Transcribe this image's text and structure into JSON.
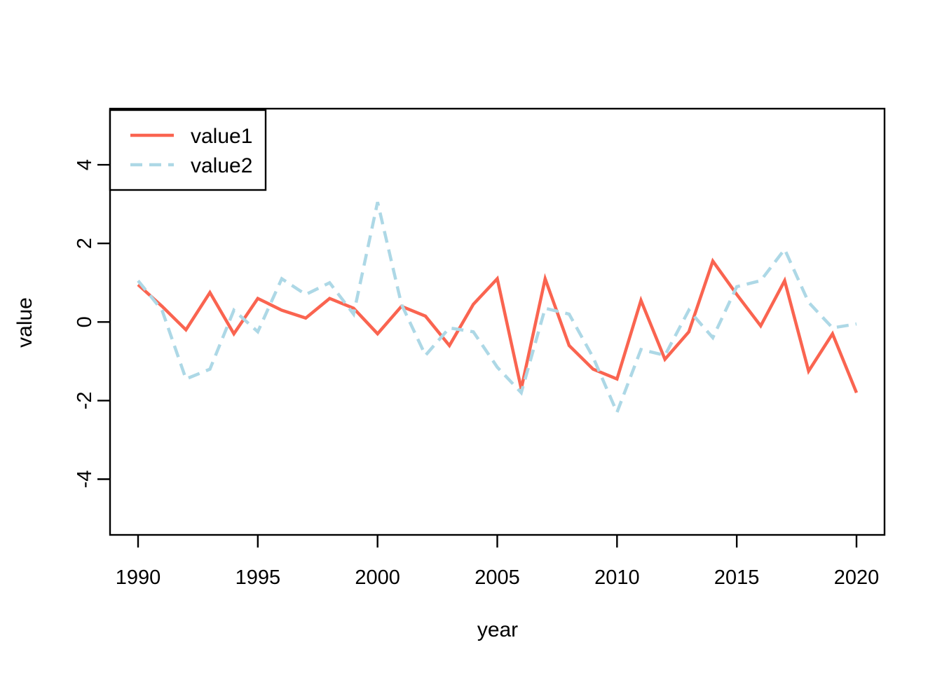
{
  "figure": {
    "background": "#ffffff",
    "border_color": "#000000"
  },
  "chart_data": {
    "type": "line",
    "title": "",
    "xlabel": "year",
    "ylabel": "value",
    "x": [
      1990,
      1991,
      1992,
      1993,
      1994,
      1995,
      1996,
      1997,
      1998,
      1999,
      2000,
      2001,
      2002,
      2003,
      2004,
      2005,
      2006,
      2007,
      2008,
      2009,
      2010,
      2011,
      2012,
      2013,
      2014,
      2015,
      2016,
      2017,
      2018,
      2019,
      2020
    ],
    "series": [
      {
        "name": "value1",
        "color": "#fa6450",
        "line_style": "solid",
        "values": [
          0.95,
          0.4,
          -0.2,
          0.75,
          -0.3,
          0.6,
          0.3,
          0.1,
          0.6,
          0.35,
          -0.3,
          0.4,
          0.15,
          -0.6,
          0.45,
          1.1,
          -1.7,
          1.1,
          -0.6,
          -1.2,
          -1.45,
          0.55,
          -0.95,
          -0.25,
          1.55,
          0.7,
          -0.1,
          1.05,
          -1.25,
          -0.3,
          -1.8
        ]
      },
      {
        "name": "value2",
        "color": "#add8e6",
        "line_style": "dashed",
        "values": [
          1.05,
          0.3,
          -1.45,
          -1.2,
          0.3,
          -0.25,
          1.1,
          0.7,
          1.0,
          0.2,
          3.05,
          0.45,
          -0.85,
          -0.15,
          -0.25,
          -1.15,
          -1.8,
          0.35,
          0.2,
          -0.9,
          -2.3,
          -0.7,
          -0.85,
          0.3,
          -0.4,
          0.9,
          1.05,
          1.85,
          0.5,
          -0.15,
          -0.05
        ]
      }
    ],
    "x_ticks": [
      1990,
      1995,
      2000,
      2005,
      2010,
      2015,
      2020
    ],
    "y_ticks": [
      -4,
      -2,
      0,
      2,
      4
    ],
    "xlim": [
      1988.8,
      2021.2
    ],
    "ylim": [
      -5.4,
      5.4
    ],
    "grid": false,
    "legend": {
      "position": "top-left",
      "entries": [
        "value1",
        "value2"
      ]
    }
  }
}
